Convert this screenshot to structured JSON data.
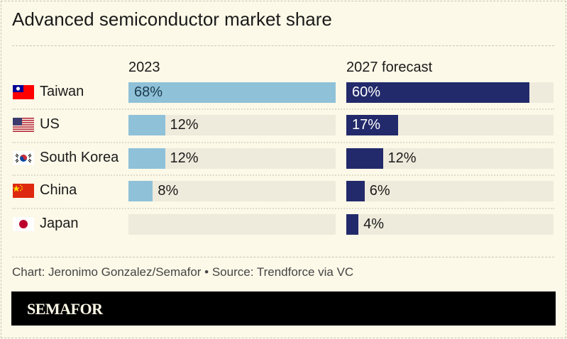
{
  "title": "Advanced semiconductor market share",
  "source": "Chart: Jeronimo Gonzalez/Semafor • Source: Trendforce via VC",
  "logo": "SEMAFOR",
  "colors": {
    "background": "#fdf9e8",
    "track": "#efebdc",
    "series_2023": "#8fc1d9",
    "series_2027": "#232a6b"
  },
  "chart_data": {
    "type": "bar",
    "orientation": "horizontal",
    "categories": [
      "Taiwan",
      "US",
      "South Korea",
      "China",
      "Japan"
    ],
    "flags": [
      "taiwan-flag-icon",
      "us-flag-icon",
      "south-korea-flag-icon",
      "china-flag-icon",
      "japan-flag-icon"
    ],
    "series": [
      {
        "name": "2023",
        "values": [
          68,
          12,
          12,
          8,
          0
        ],
        "labels": [
          "68%",
          "12%",
          "12%",
          "8%",
          ""
        ]
      },
      {
        "name": "2027 forecast",
        "values": [
          60,
          17,
          12,
          6,
          4
        ],
        "labels": [
          "60%",
          "17%",
          "12%",
          "6%",
          "4%"
        ]
      }
    ],
    "unit": "%",
    "xlim": [
      0,
      68
    ]
  }
}
